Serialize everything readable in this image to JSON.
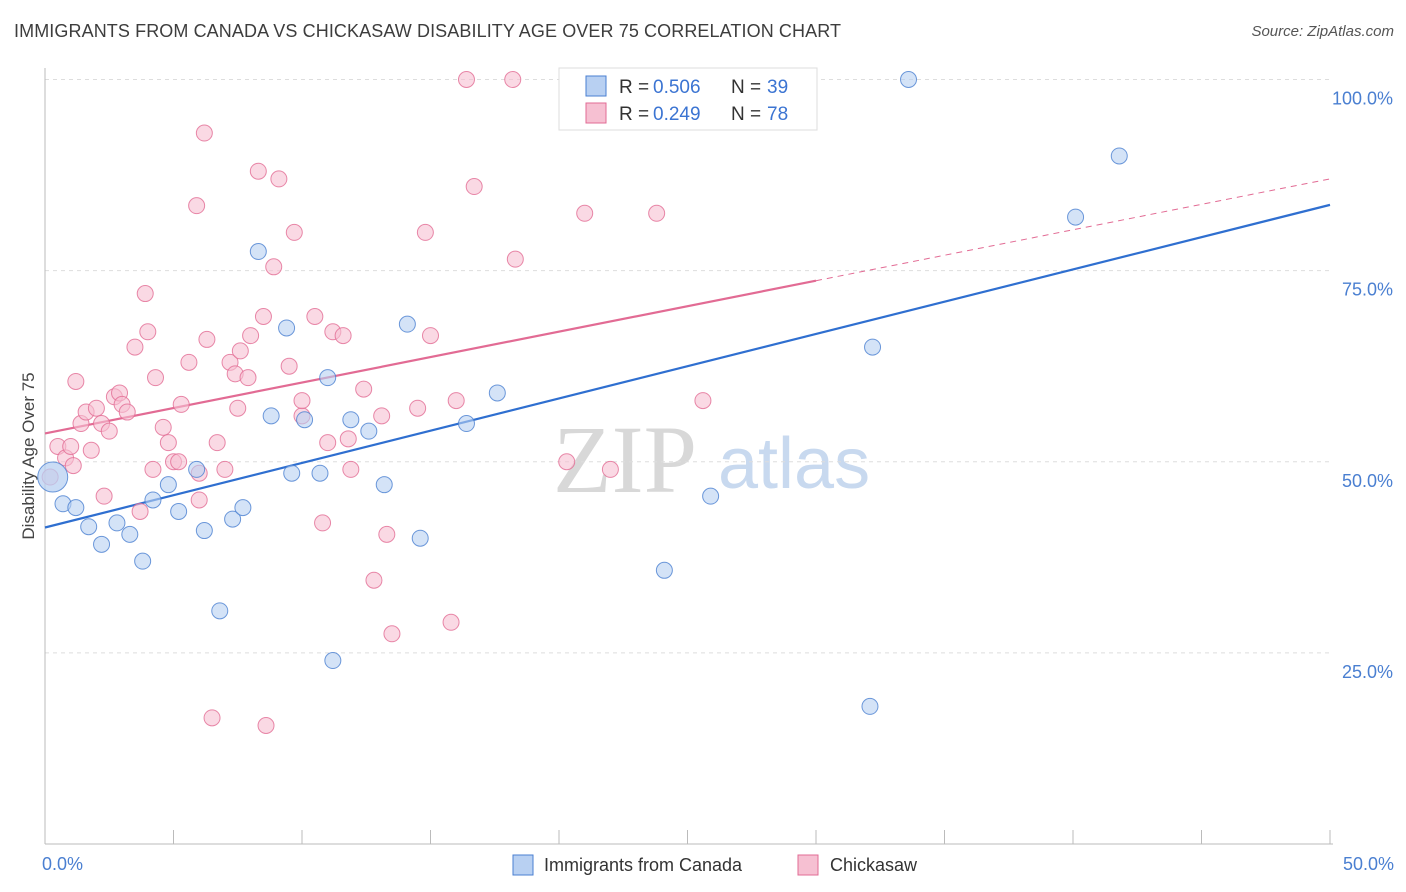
{
  "header": {
    "title": "IMMIGRANTS FROM CANADA VS CHICKASAW DISABILITY AGE OVER 75 CORRELATION CHART",
    "source": "Source: ZipAtlas.com"
  },
  "watermark": {
    "zip": "ZIP",
    "atlas": "atlas"
  },
  "colors": {
    "blue": "#4a7fd1",
    "blue_fill": "#b8d0f2",
    "blue_line": "#2f6fd0",
    "pink": "#e26b94",
    "pink_fill": "#f6c0d2",
    "grid": "#dddddd",
    "axis": "#bbbbbb"
  },
  "legend": {
    "rows": [
      {
        "r_label": "R =",
        "r_value": "0.506",
        "n_label": "N =",
        "n_value": "39",
        "series": "blue"
      },
      {
        "r_label": "R =",
        "r_value": "0.249",
        "n_label": "N =",
        "n_value": "78",
        "series": "pink"
      }
    ]
  },
  "bottom_legend": [
    "Immigrants from Canada",
    "Chickasaw"
  ],
  "chart_data": {
    "type": "scatter",
    "title": "IMMIGRANTS FROM CANADA VS CHICKASAW DISABILITY AGE OVER 75 CORRELATION CHART",
    "xlabel": "",
    "ylabel": "Disability Age Over 75",
    "xlim": [
      0,
      50
    ],
    "ylim": [
      0,
      105
    ],
    "x_tick_labels": [
      "0.0%",
      "50.0%"
    ],
    "y_ticks": [
      25,
      50,
      75,
      100
    ],
    "y_tick_labels": [
      "25.0%",
      "50.0%",
      "75.0%",
      "100.0%"
    ],
    "grid": true,
    "legend_position": "top-center",
    "series": [
      {
        "name": "Immigrants from Canada",
        "color": "#4a7fd1",
        "r": 0.506,
        "n": 39,
        "trend": {
          "x": [
            0,
            50
          ],
          "y": [
            41.4,
            83.6
          ],
          "dashed_from": null
        },
        "points": [
          [
            0.3,
            48.0
          ],
          [
            0.7,
            44.5
          ],
          [
            1.2,
            44.0
          ],
          [
            1.7,
            41.5
          ],
          [
            2.2,
            39.2
          ],
          [
            2.8,
            42.0
          ],
          [
            3.3,
            40.5
          ],
          [
            3.8,
            37.0
          ],
          [
            4.2,
            45.0
          ],
          [
            4.8,
            47.0
          ],
          [
            5.2,
            43.5
          ],
          [
            5.9,
            49.0
          ],
          [
            6.2,
            41.0
          ],
          [
            6.8,
            30.5
          ],
          [
            7.3,
            42.5
          ],
          [
            7.7,
            44.0
          ],
          [
            8.3,
            77.5
          ],
          [
            8.8,
            56.0
          ],
          [
            9.4,
            67.5
          ],
          [
            9.6,
            48.5
          ],
          [
            10.1,
            55.5
          ],
          [
            10.7,
            48.5
          ],
          [
            11.0,
            61.0
          ],
          [
            11.2,
            24.0
          ],
          [
            11.9,
            55.5
          ],
          [
            12.6,
            54.0
          ],
          [
            13.2,
            47.0
          ],
          [
            14.1,
            68.0
          ],
          [
            14.6,
            40.0
          ],
          [
            16.4,
            55.0
          ],
          [
            17.6,
            59.0
          ],
          [
            20.5,
            100.0
          ],
          [
            24.1,
            35.8
          ],
          [
            25.9,
            45.5
          ],
          [
            32.2,
            65.0
          ],
          [
            32.1,
            18.0
          ],
          [
            33.6,
            100.0
          ],
          [
            40.1,
            82.0
          ],
          [
            41.8,
            90.0
          ]
        ]
      },
      {
        "name": "Chickasaw",
        "color": "#e26b94",
        "r": 0.249,
        "n": 78,
        "trend": {
          "x": [
            0,
            50
          ],
          "y": [
            53.7,
            87.0
          ],
          "dashed_from": 30
        },
        "points": [
          [
            0.2,
            48.0
          ],
          [
            0.5,
            52.0
          ],
          [
            0.8,
            50.5
          ],
          [
            1.0,
            52.0
          ],
          [
            1.1,
            49.5
          ],
          [
            1.2,
            60.5
          ],
          [
            1.4,
            55.0
          ],
          [
            1.6,
            56.5
          ],
          [
            1.8,
            51.5
          ],
          [
            2.0,
            57.0
          ],
          [
            2.2,
            55.0
          ],
          [
            2.3,
            45.5
          ],
          [
            2.5,
            54.0
          ],
          [
            2.7,
            58.5
          ],
          [
            2.9,
            59.0
          ],
          [
            3.0,
            57.5
          ],
          [
            3.2,
            56.5
          ],
          [
            3.5,
            65.0
          ],
          [
            3.7,
            43.5
          ],
          [
            3.9,
            72.0
          ],
          [
            4.0,
            67.0
          ],
          [
            4.2,
            49.0
          ],
          [
            4.3,
            61.0
          ],
          [
            4.6,
            54.5
          ],
          [
            4.8,
            52.5
          ],
          [
            5.0,
            50.0
          ],
          [
            5.2,
            50.0
          ],
          [
            5.3,
            57.5
          ],
          [
            5.6,
            63.0
          ],
          [
            5.9,
            83.5
          ],
          [
            6.0,
            48.5
          ],
          [
            6.2,
            93.0
          ],
          [
            6.3,
            66.0
          ],
          [
            6.5,
            16.5
          ],
          [
            6.7,
            52.5
          ],
          [
            7.0,
            49.0
          ],
          [
            7.2,
            63.0
          ],
          [
            7.4,
            61.5
          ],
          [
            7.5,
            57.0
          ],
          [
            7.6,
            64.5
          ],
          [
            7.9,
            61.0
          ],
          [
            8.0,
            66.5
          ],
          [
            8.3,
            88.0
          ],
          [
            8.5,
            69.0
          ],
          [
            8.6,
            15.5
          ],
          [
            8.9,
            75.5
          ],
          [
            9.1,
            87.0
          ],
          [
            9.5,
            62.5
          ],
          [
            9.7,
            80.0
          ],
          [
            10.0,
            56.0
          ],
          [
            10.5,
            69.0
          ],
          [
            10.8,
            42.0
          ],
          [
            11.0,
            52.5
          ],
          [
            11.2,
            67.0
          ],
          [
            11.6,
            66.5
          ],
          [
            11.8,
            53.0
          ],
          [
            11.9,
            49.0
          ],
          [
            12.4,
            59.5
          ],
          [
            12.8,
            34.5
          ],
          [
            13.1,
            56.0
          ],
          [
            13.3,
            40.5
          ],
          [
            13.5,
            27.5
          ],
          [
            14.5,
            57.0
          ],
          [
            15.0,
            66.5
          ],
          [
            15.8,
            29.0
          ],
          [
            16.0,
            58.0
          ],
          [
            16.4,
            100.0
          ],
          [
            16.7,
            86.0
          ],
          [
            18.2,
            100.0
          ],
          [
            18.3,
            76.5
          ],
          [
            20.3,
            50.0
          ],
          [
            21.0,
            82.5
          ],
          [
            22.0,
            49.0
          ],
          [
            23.8,
            82.5
          ],
          [
            25.6,
            58.0
          ],
          [
            14.8,
            80.0
          ],
          [
            10.0,
            58.0
          ],
          [
            6.0,
            45.0
          ]
        ]
      }
    ]
  }
}
